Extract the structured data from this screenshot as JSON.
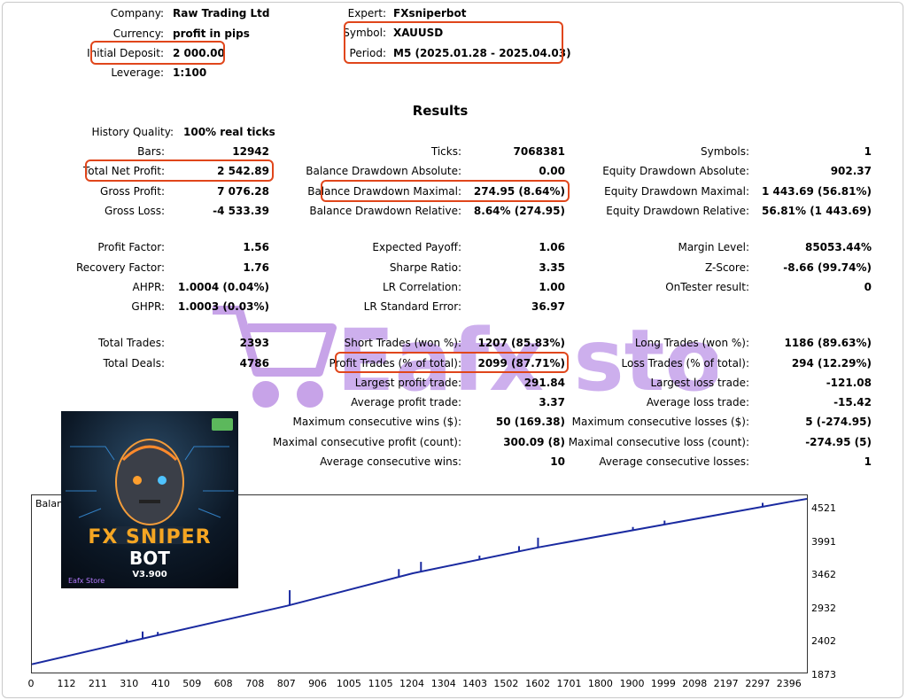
{
  "header_left": {
    "company_label": "Company:",
    "company": "Raw Trading Ltd",
    "currency_label": "Currency:",
    "currency": "profit in pips",
    "deposit_label": "Initial Deposit:",
    "deposit": "2 000.00",
    "leverage_label": "Leverage:",
    "leverage": "1:100"
  },
  "header_right": {
    "expert_label": "Expert:",
    "expert": "FXsniperbot",
    "symbol_label": "Symbol:",
    "symbol": "XAUUSD",
    "period_label": "Period:",
    "period": "M5 (2025.01.28 - 2025.04.03)"
  },
  "results_title": "Results",
  "col1": {
    "history_quality_label": "History Quality:",
    "history_quality": "100% real ticks",
    "bars_label": "Bars:",
    "bars": "12942",
    "net_profit_label": "Total Net Profit:",
    "net_profit": "2 542.89",
    "gross_profit_label": "Gross Profit:",
    "gross_profit": "7 076.28",
    "gross_loss_label": "Gross Loss:",
    "gross_loss": "-4 533.39",
    "profit_factor_label": "Profit Factor:",
    "profit_factor": "1.56",
    "recovery_factor_label": "Recovery Factor:",
    "recovery_factor": "1.76",
    "ahpr_label": "AHPR:",
    "ahpr": "1.0004 (0.04%)",
    "ghpr_label": "GHPR:",
    "ghpr": "1.0003 (0.03%)",
    "total_trades_label": "Total Trades:",
    "total_trades": "2393",
    "total_deals_label": "Total Deals:",
    "total_deals": "4786"
  },
  "col2": {
    "ticks_label": "Ticks:",
    "ticks": "7068381",
    "bal_dd_abs_label": "Balance Drawdown Absolute:",
    "bal_dd_abs": "0.00",
    "bal_dd_max_label": "Balance Drawdown Maximal:",
    "bal_dd_max": "274.95 (8.64%)",
    "bal_dd_rel_label": "Balance Drawdown Relative:",
    "bal_dd_rel": "8.64% (274.95)",
    "expected_payoff_label": "Expected Payoff:",
    "expected_payoff": "1.06",
    "sharpe_label": "Sharpe Ratio:",
    "sharpe": "3.35",
    "lr_corr_label": "LR Correlation:",
    "lr_corr": "1.00",
    "lr_err_label": "LR Standard Error:",
    "lr_err": "36.97",
    "short_trades_label": "Short Trades (won %):",
    "short_trades": "1207 (85.83%)",
    "profit_trades_label": "Profit Trades (% of total):",
    "profit_trades": "2099 (87.71%)",
    "largest_profit_label": "Largest profit trade:",
    "largest_profit": "291.84",
    "avg_profit_label": "Average profit trade:",
    "avg_profit": "3.37",
    "max_cons_wins_label": "Maximum consecutive wins ($):",
    "max_cons_wins": "50 (169.38)",
    "maximal_cons_profit_label": "Maximal consecutive profit (count):",
    "maximal_cons_profit": "300.09 (8)",
    "avg_cons_wins_label": "Average consecutive wins:",
    "avg_cons_wins": "10"
  },
  "col3": {
    "symbols_label": "Symbols:",
    "symbols": "1",
    "eq_dd_abs_label": "Equity Drawdown Absolute:",
    "eq_dd_abs": "902.37",
    "eq_dd_max_label": "Equity Drawdown Maximal:",
    "eq_dd_max": "1 443.69 (56.81%)",
    "eq_dd_rel_label": "Equity Drawdown Relative:",
    "eq_dd_rel": "56.81% (1 443.69)",
    "margin_label": "Margin Level:",
    "margin": "85053.44%",
    "zscore_label": "Z-Score:",
    "zscore": "-8.66 (99.74%)",
    "ontester_label": "OnTester result:",
    "ontester": "0",
    "long_trades_label": "Long Trades (won %):",
    "long_trades": "1186 (89.63%)",
    "loss_trades_label": "Loss Trades (% of total):",
    "loss_trades": "294 (12.29%)",
    "largest_loss_label": "Largest loss trade:",
    "largest_loss": "-121.08",
    "avg_loss_label": "Average loss trade:",
    "avg_loss": "-15.42",
    "max_cons_losses_label": "Maximum consecutive losses ($):",
    "max_cons_losses": "5 (-274.95)",
    "maximal_cons_loss_label": "Maximal consecutive loss (count):",
    "maximal_cons_loss": "-274.95 (5)",
    "avg_cons_losses_label": "Average consecutive losses:",
    "avg_cons_losses": "1"
  },
  "product": {
    "title_line1": "FX SNIPER",
    "title_line2": "BOT",
    "version": "V3.900",
    "brand": "Eafx Store",
    "accent": "#f5a623"
  },
  "watermark_text": "Eafx store",
  "chart_data": {
    "type": "line",
    "title": "Balance",
    "x_ticks": [
      "0",
      "112",
      "211",
      "310",
      "410",
      "509",
      "608",
      "708",
      "807",
      "906",
      "1005",
      "1105",
      "1204",
      "1304",
      "1403",
      "1502",
      "1602",
      "1701",
      "1800",
      "1900",
      "1999",
      "2098",
      "2197",
      "2297",
      "2396"
    ],
    "y_ticks": [
      "4521",
      "3991",
      "3462",
      "2932",
      "2402",
      "1873"
    ],
    "xlim": [
      0,
      2450
    ],
    "ylim": [
      1873,
      4600
    ],
    "series": [
      {
        "name": "",
        "color": "#1a2aa0",
        "x": [
          0,
          310,
          807,
          1204,
          1602,
          1999,
          2396,
          2450
        ],
        "y": [
          2000,
          2350,
          2900,
          3400,
          3800,
          4150,
          4500,
          4545
        ]
      }
    ],
    "spikes": [
      {
        "x": 300,
        "dy": 40
      },
      {
        "x": 350,
        "dy": 110
      },
      {
        "x": 398,
        "dy": 50
      },
      {
        "x": 815,
        "dy": 230
      },
      {
        "x": 1160,
        "dy": 120
      },
      {
        "x": 1230,
        "dy": 150
      },
      {
        "x": 1415,
        "dy": 60
      },
      {
        "x": 1540,
        "dy": 80
      },
      {
        "x": 1600,
        "dy": 150
      },
      {
        "x": 1900,
        "dy": 50
      },
      {
        "x": 2000,
        "dy": 60
      },
      {
        "x": 2310,
        "dy": 60
      }
    ]
  },
  "colors": {
    "highlight": "#e0461b",
    "line": "#1a2aa0",
    "watermark": "#9b59d6"
  }
}
